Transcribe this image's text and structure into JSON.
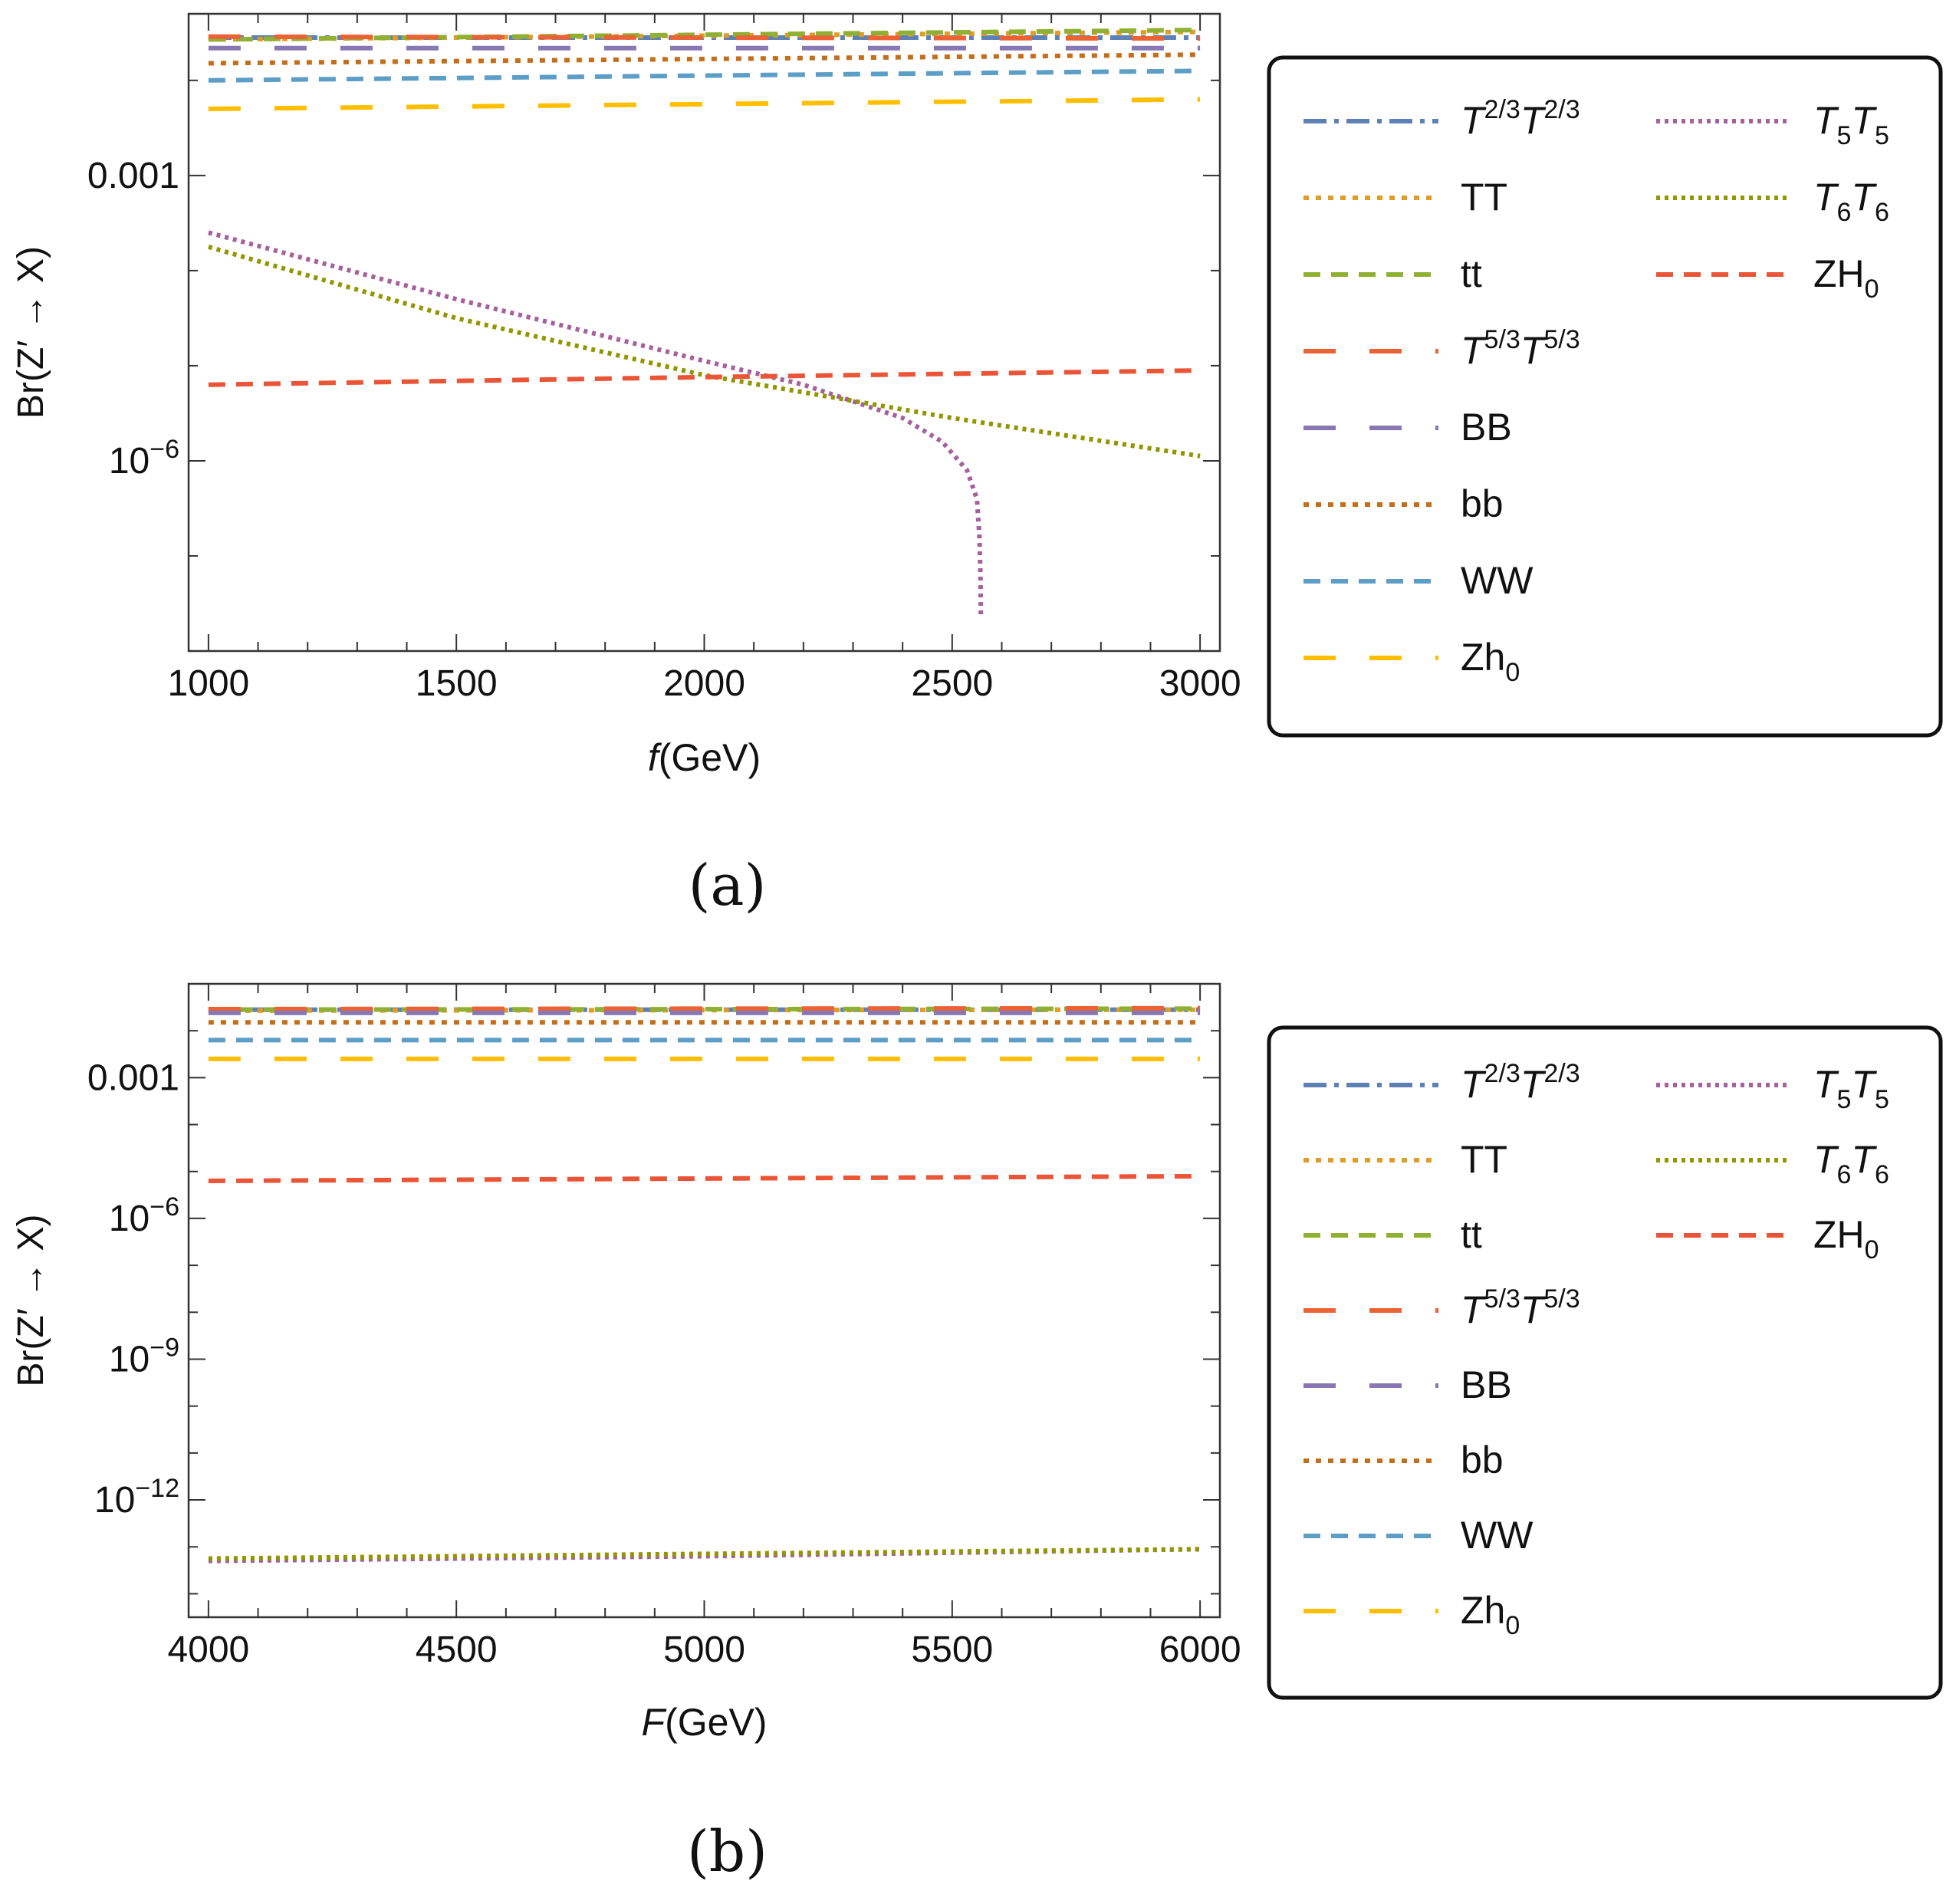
{
  "chart_data": [
    {
      "type": "line",
      "caption": "(a)",
      "xlabel_var": "f",
      "xlabel_unit": "(GeV)",
      "ylabel": "Br(Z′ → X)",
      "xlim": [
        960,
        3040
      ],
      "x_ticks": [
        1000,
        1500,
        2000,
        2500,
        3000
      ],
      "y_scale": "log",
      "ylim_log10": [
        -8.0,
        -1.3
      ],
      "y_ticks": [
        {
          "log10": -3,
          "label": "0.001"
        },
        {
          "log10": -6,
          "label": "10",
          "sup": "−6"
        }
      ],
      "legend": "right",
      "series": [
        {
          "key": "T23",
          "points": [
            [
              1000,
              -1.55
            ],
            [
              3000,
              -1.55
            ]
          ]
        },
        {
          "key": "TT",
          "points": [
            [
              1000,
              -1.57
            ],
            [
              3000,
              -1.49
            ]
          ]
        },
        {
          "key": "tt",
          "points": [
            [
              1000,
              -1.57
            ],
            [
              3000,
              -1.47
            ]
          ]
        },
        {
          "key": "T53",
          "points": [
            [
              1000,
              -1.54
            ],
            [
              3000,
              -1.56
            ]
          ]
        },
        {
          "key": "BB",
          "points": [
            [
              1000,
              -1.66
            ],
            [
              3000,
              -1.66
            ]
          ]
        },
        {
          "key": "bb",
          "points": [
            [
              1000,
              -1.82
            ],
            [
              3000,
              -1.73
            ]
          ]
        },
        {
          "key": "WW",
          "points": [
            [
              1000,
              -2.0
            ],
            [
              3000,
              -1.9
            ]
          ]
        },
        {
          "key": "Zh0",
          "points": [
            [
              1000,
              -2.3
            ],
            [
              3000,
              -2.2
            ]
          ]
        },
        {
          "key": "T5",
          "points": [
            [
              1000,
              -3.6
            ],
            [
              1500,
              -4.3
            ],
            [
              2000,
              -4.95
            ],
            [
              2200,
              -5.2
            ],
            [
              2400,
              -5.55
            ],
            [
              2480,
              -5.8
            ],
            [
              2530,
              -6.1
            ],
            [
              2550,
              -6.4
            ],
            [
              2555,
              -6.8
            ],
            [
              2557,
              -7.2
            ],
            [
              2558,
              -7.65
            ]
          ]
        },
        {
          "key": "T6",
          "points": [
            [
              1000,
              -3.75
            ],
            [
              1500,
              -4.5
            ],
            [
              2000,
              -5.1
            ],
            [
              2500,
              -5.55
            ],
            [
              3000,
              -5.95
            ]
          ]
        },
        {
          "key": "ZH0",
          "points": [
            [
              1000,
              -5.2
            ],
            [
              2000,
              -5.12
            ],
            [
              3000,
              -5.05
            ]
          ]
        }
      ]
    },
    {
      "type": "line",
      "caption": "(b)",
      "xlabel_var": "F",
      "xlabel_unit": "(GeV)",
      "ylabel": "Br(Z′ → X)",
      "xlim": [
        3960,
        6040
      ],
      "x_ticks": [
        4000,
        4500,
        5000,
        5500,
        6000
      ],
      "y_scale": "log",
      "ylim_log10": [
        -14.5,
        -1.0
      ],
      "y_ticks": [
        {
          "log10": -3,
          "label": "0.001"
        },
        {
          "log10": -6,
          "label": "10",
          "sup": "−6"
        },
        {
          "log10": -9,
          "label": "10",
          "sup": "−9"
        },
        {
          "log10": -12,
          "label": "10",
          "sup": "−12"
        }
      ],
      "legend": "right",
      "series": [
        {
          "key": "T23",
          "points": [
            [
              4000,
              -1.55
            ],
            [
              6000,
              -1.55
            ]
          ]
        },
        {
          "key": "TT",
          "points": [
            [
              4000,
              -1.57
            ],
            [
              6000,
              -1.55
            ]
          ]
        },
        {
          "key": "tt",
          "points": [
            [
              4000,
              -1.55
            ],
            [
              6000,
              -1.53
            ]
          ]
        },
        {
          "key": "T53",
          "points": [
            [
              4000,
              -1.54
            ],
            [
              6000,
              -1.52
            ]
          ]
        },
        {
          "key": "BB",
          "points": [
            [
              4000,
              -1.62
            ],
            [
              6000,
              -1.62
            ]
          ]
        },
        {
          "key": "bb",
          "points": [
            [
              4000,
              -1.82
            ],
            [
              6000,
              -1.82
            ]
          ]
        },
        {
          "key": "WW",
          "points": [
            [
              4000,
              -2.2
            ],
            [
              6000,
              -2.2
            ]
          ]
        },
        {
          "key": "Zh0",
          "points": [
            [
              4000,
              -2.6
            ],
            [
              6000,
              -2.6
            ]
          ]
        },
        {
          "key": "T5",
          "points": [
            [
              4000,
              -13.3
            ],
            [
              5000,
              -13.2
            ],
            [
              6000,
              -13.05
            ]
          ]
        },
        {
          "key": "T6",
          "points": [
            [
              4000,
              -13.25
            ],
            [
              5000,
              -13.15
            ],
            [
              6000,
              -13.05
            ]
          ]
        },
        {
          "key": "ZH0",
          "points": [
            [
              4000,
              -5.2
            ],
            [
              5000,
              -5.15
            ],
            [
              6000,
              -5.1
            ]
          ]
        }
      ]
    }
  ],
  "series_styles": {
    "T23": {
      "color": "#5e81b5",
      "dash": "30 10 6 10"
    },
    "TT": {
      "color": "#e19c24",
      "dash": "7 9"
    },
    "tt": {
      "color": "#8fb032",
      "dash": "22 14"
    },
    "T53": {
      "color": "#eb6235",
      "dash": "42 44"
    },
    "BB": {
      "color": "#8778b3",
      "dash": "42 44"
    },
    "bb": {
      "color": "#c56e1a",
      "dash": "7 9"
    },
    "WW": {
      "color": "#5d9ec7",
      "dash": "22 14"
    },
    "Zh0": {
      "color": "#ffbf00",
      "dash": "42 44"
    },
    "T5": {
      "color": "#a5609d",
      "dash": "5 6"
    },
    "T6": {
      "color": "#929600",
      "dash": "5 6"
    },
    "ZH0": {
      "color": "#e95536",
      "dash": "22 14"
    }
  },
  "legend": {
    "col1": [
      {
        "key": "T23",
        "base1": "T",
        "sup1": "2/3",
        "base2": "T",
        "sup2": "2/3",
        "italic": true
      },
      {
        "key": "TT",
        "text": "TT"
      },
      {
        "key": "tt",
        "text": "tt"
      },
      {
        "key": "T53",
        "base1": "T",
        "sup1": "5/3",
        "base2": "T",
        "sup2": "5/3",
        "italic": true
      },
      {
        "key": "BB",
        "text": "BB"
      },
      {
        "key": "bb",
        "text": "bb"
      },
      {
        "key": "WW",
        "text": "WW"
      },
      {
        "key": "Zh0",
        "text": "Zh",
        "sub": "0"
      }
    ],
    "col2": [
      {
        "key": "T5",
        "base1": "T",
        "sub1": "5",
        "base2": "T",
        "sub2": "5",
        "italic": true
      },
      {
        "key": "T6",
        "base1": "T",
        "sub1": "6",
        "base2": "T",
        "sub2": "6",
        "italic": true
      },
      {
        "key": "ZH0",
        "text": "ZH",
        "sub": "0"
      }
    ]
  }
}
